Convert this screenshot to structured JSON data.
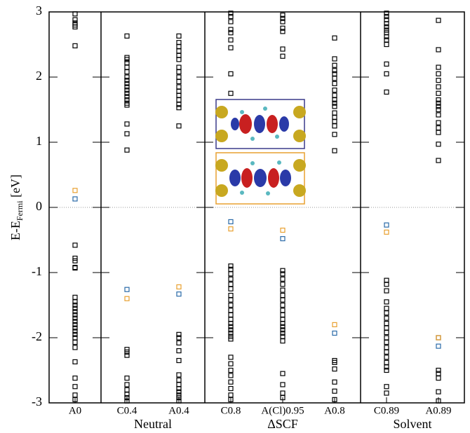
{
  "chart_data": {
    "type": "scatter",
    "ylabel": {
      "text": "E-E",
      "subscript": "Fermi",
      "suffix": " [eV]"
    },
    "categories": [
      "A0",
      "C0.4",
      "A0.4",
      "C0.8",
      "A(Cl)0.95",
      "A0.8",
      "C0.89",
      "A0.89"
    ],
    "groups": [
      {
        "label": null,
        "count": 1
      },
      {
        "label": "Neutral",
        "count": 2
      },
      {
        "label": "ΔSCF",
        "count": 3
      },
      {
        "label": "Solvent",
        "count": 2
      }
    ],
    "ylim": [
      -3,
      3
    ],
    "yticks": [
      -3,
      -2,
      -1,
      0,
      1,
      2,
      3
    ],
    "zero_line": true,
    "series": [
      {
        "color": "#000000",
        "values": [
          [
            2.97,
            2.88,
            2.83,
            2.8,
            2.77,
            2.48,
            -0.58,
            -0.78,
            -0.82,
            -0.92,
            -0.93,
            -1.38,
            -1.45,
            -1.5,
            -1.55,
            -1.6,
            -1.65,
            -1.7,
            -1.75,
            -1.8,
            -1.85,
            -1.9,
            -1.95,
            -2.0,
            -2.07,
            -2.15,
            -2.37,
            -2.62,
            -2.75,
            -2.88,
            -2.95
          ],
          [
            2.63,
            2.3,
            2.27,
            2.22,
            2.15,
            2.08,
            2.0,
            1.95,
            1.9,
            1.85,
            1.8,
            1.75,
            1.7,
            1.65,
            1.6,
            1.57,
            1.28,
            1.13,
            0.88,
            -2.18,
            -2.22,
            -2.27,
            -2.62,
            -2.72,
            -2.8,
            -2.87,
            -2.92,
            -2.97
          ],
          [
            2.63,
            2.53,
            2.47,
            2.4,
            2.33,
            2.27,
            2.15,
            2.08,
            2.0,
            1.93,
            1.85,
            1.78,
            1.72,
            1.65,
            1.58,
            1.53,
            1.25,
            -1.95,
            -2.0,
            -2.08,
            -2.2,
            -2.35,
            -2.57,
            -2.65,
            -2.72,
            -2.78,
            -2.83,
            -2.88,
            -2.92,
            -2.97
          ],
          [
            2.98,
            2.93,
            2.85,
            2.73,
            2.68,
            2.57,
            2.45,
            2.05,
            1.75,
            -0.9,
            -0.95,
            -1.02,
            -1.1,
            -1.18,
            -1.25,
            -1.35,
            -1.42,
            -1.5,
            -1.58,
            -1.65,
            -1.72,
            -1.78,
            -1.83,
            -1.88,
            -1.93,
            -1.98,
            -2.02,
            -2.3,
            -2.4,
            -2.5,
            -2.58,
            -2.68,
            -2.78,
            -2.88,
            -2.95
          ],
          [
            2.95,
            2.9,
            2.85,
            2.75,
            2.7,
            2.43,
            2.32,
            -0.97,
            -1.02,
            -1.1,
            -1.18,
            -1.27,
            -1.35,
            -1.42,
            -1.5,
            -1.58,
            -1.65,
            -1.72,
            -1.78,
            -1.83,
            -1.88,
            -1.93,
            -1.98,
            -2.05,
            -2.55,
            -2.72,
            -2.85,
            -2.92
          ],
          [
            2.6,
            2.28,
            2.18,
            2.1,
            2.05,
            1.98,
            1.9,
            1.8,
            1.72,
            1.65,
            1.6,
            1.55,
            1.45,
            1.38,
            1.32,
            1.25,
            1.12,
            0.87,
            -2.35,
            -2.38,
            -2.48,
            -2.68,
            -2.82,
            -2.95
          ],
          [
            2.98,
            2.93,
            2.88,
            2.82,
            2.77,
            2.72,
            2.68,
            2.62,
            2.57,
            2.5,
            2.2,
            2.05,
            1.77,
            -1.12,
            -1.18,
            -1.28,
            -1.45,
            -1.55,
            -1.62,
            -1.7,
            -1.78,
            -1.85,
            -1.92,
            -2.0,
            -2.07,
            -2.15,
            -2.22,
            -2.3,
            -2.38,
            -2.45,
            -2.5,
            -2.75,
            -2.85
          ],
          [
            2.87,
            2.42,
            2.15,
            2.05,
            1.95,
            1.85,
            1.75,
            1.65,
            1.6,
            1.55,
            1.5,
            1.42,
            1.3,
            1.22,
            1.15,
            0.97,
            0.72,
            -2.0,
            -2.5,
            -2.55,
            -2.62,
            -2.83,
            -2.97
          ]
        ]
      },
      {
        "color": "#e8a030",
        "values": [
          [
            0.26
          ],
          [
            -1.4
          ],
          [
            -1.22
          ],
          [
            -0.33
          ],
          [
            -0.35
          ],
          [
            -1.8
          ],
          [
            -0.38
          ],
          [
            -2.0
          ]
        ]
      },
      {
        "color": "#2a6aa8",
        "values": [
          [
            0.13
          ],
          [
            -1.26
          ],
          [
            -1.33
          ],
          [
            -0.22
          ],
          [
            -0.48
          ],
          [
            -1.93
          ],
          [
            -0.27
          ],
          [
            -2.13
          ]
        ]
      }
    ]
  }
}
